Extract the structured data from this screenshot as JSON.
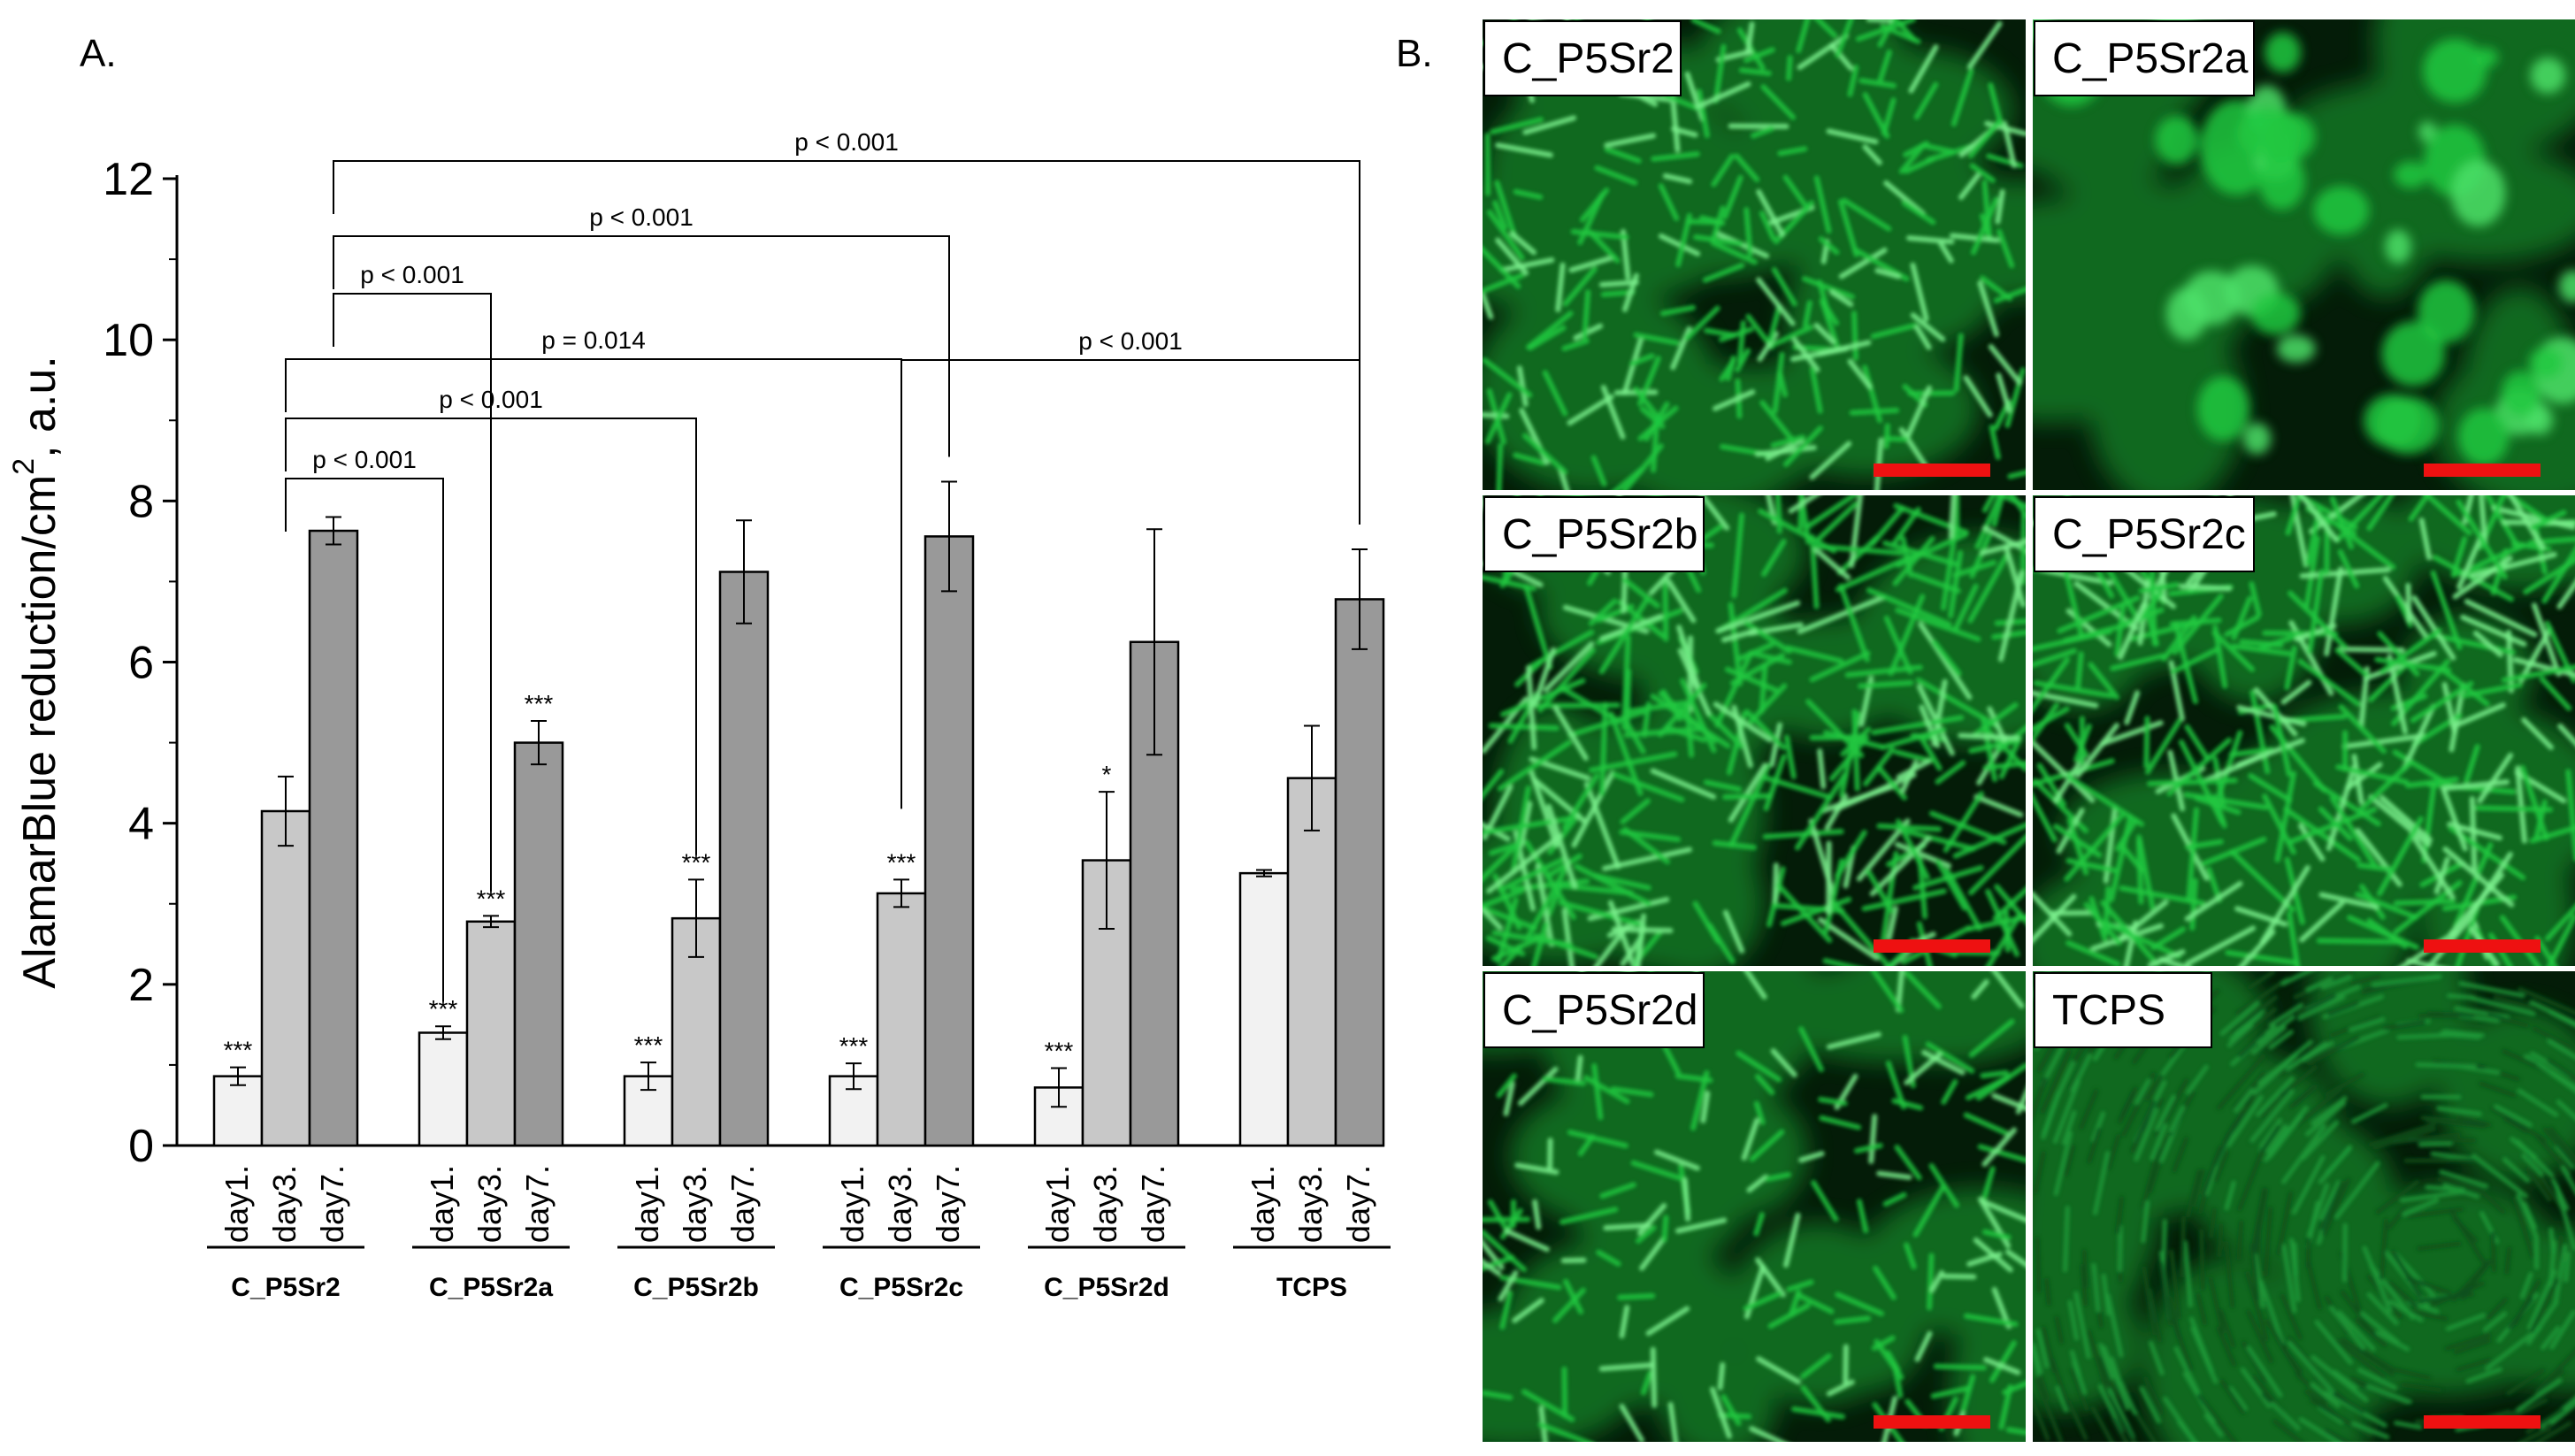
{
  "panel_a": {
    "letter": "A."
  },
  "panel_b": {
    "letter": "B."
  },
  "chart_data": {
    "type": "bar",
    "ylabel_main": "AlamarBlue reduction/cm",
    "ylabel_sup": "2",
    "ylabel_tail": ", a.u.",
    "ylim": [
      0,
      12
    ],
    "yticks": [
      0,
      2,
      4,
      6,
      8,
      10,
      12
    ],
    "grid": false,
    "colors": {
      "day1.": "#f2f2f2",
      "day3.": "#c8c8c8",
      "day7.": "#999999"
    },
    "groups": [
      {
        "name": "C_P5Sr2",
        "bars": [
          {
            "label": "day1.",
            "value": 0.86,
            "error": 0.11,
            "sig": "***"
          },
          {
            "label": "day3.",
            "value": 4.15,
            "error": 0.43,
            "sig": ""
          },
          {
            "label": "day7.",
            "value": 7.63,
            "error": 0.17,
            "sig": ""
          }
        ]
      },
      {
        "name": "C_P5Sr2a",
        "bars": [
          {
            "label": "day1.",
            "value": 1.4,
            "error": 0.08,
            "sig": "***"
          },
          {
            "label": "day3.",
            "value": 2.78,
            "error": 0.07,
            "sig": "***"
          },
          {
            "label": "day7.",
            "value": 5.0,
            "error": 0.27,
            "sig": "***"
          }
        ]
      },
      {
        "name": "C_P5Sr2b",
        "bars": [
          {
            "label": "day1.",
            "value": 0.86,
            "error": 0.17,
            "sig": "***"
          },
          {
            "label": "day3.",
            "value": 2.82,
            "error": 0.48,
            "sig": "***"
          },
          {
            "label": "day7.",
            "value": 7.12,
            "error": 0.64,
            "sig": ""
          }
        ]
      },
      {
        "name": "C_P5Sr2c",
        "bars": [
          {
            "label": "day1.",
            "value": 0.86,
            "error": 0.16,
            "sig": "***"
          },
          {
            "label": "day3.",
            "value": 3.13,
            "error": 0.17,
            "sig": "***"
          },
          {
            "label": "day7.",
            "value": 7.56,
            "error": 0.68,
            "sig": ""
          }
        ]
      },
      {
        "name": "C_P5Sr2d",
        "bars": [
          {
            "label": "day1.",
            "value": 0.72,
            "error": 0.24,
            "sig": "***"
          },
          {
            "label": "day3.",
            "value": 3.54,
            "error": 0.85,
            "sig": "*"
          },
          {
            "label": "day7.",
            "value": 6.25,
            "error": 1.4,
            "sig": ""
          }
        ]
      },
      {
        "name": "TCPS",
        "bars": [
          {
            "label": "day1.",
            "value": 3.38,
            "error": 0.04,
            "sig": ""
          },
          {
            "label": "day3.",
            "value": 4.56,
            "error": 0.65,
            "sig": ""
          },
          {
            "label": "day7.",
            "value": 6.78,
            "error": 0.62,
            "sig": ""
          }
        ]
      }
    ],
    "comparisons": [
      {
        "label": "p < 0.001",
        "from": [
          0,
          2
        ],
        "to": [
          5,
          2
        ]
      },
      {
        "label": "p < 0.001",
        "from": [
          0,
          2
        ],
        "to": [
          3,
          2
        ]
      },
      {
        "label": "p < 0.001",
        "from": [
          0,
          2
        ],
        "to": [
          1,
          1
        ]
      },
      {
        "label": "p = 0.014",
        "from": [
          0,
          1
        ],
        "to": [
          3,
          1
        ]
      },
      {
        "label": "p < 0.001",
        "from": [
          0,
          1
        ],
        "to": [
          2,
          1
        ]
      },
      {
        "label": "p < 0.001",
        "from": [
          0,
          1
        ],
        "to": [
          1,
          0
        ]
      },
      {
        "label": "p < 0.001",
        "from": [
          3,
          1
        ],
        "to": [
          5,
          2
        ]
      }
    ]
  },
  "micrographs": [
    {
      "label": "C_P5Sr2",
      "texture": "dense-cluster"
    },
    {
      "label": "C_P5Sr2a",
      "texture": "blobs"
    },
    {
      "label": "C_P5Sr2b",
      "texture": "dense-elongated"
    },
    {
      "label": "C_P5Sr2c",
      "texture": "dense-elongated"
    },
    {
      "label": "C_P5Sr2d",
      "texture": "sparse-cluster"
    },
    {
      "label": "TCPS",
      "texture": "confluent-fibrous"
    }
  ],
  "colors": {
    "fluorescence": "#20c840",
    "scale_bar": "#ee1111"
  }
}
